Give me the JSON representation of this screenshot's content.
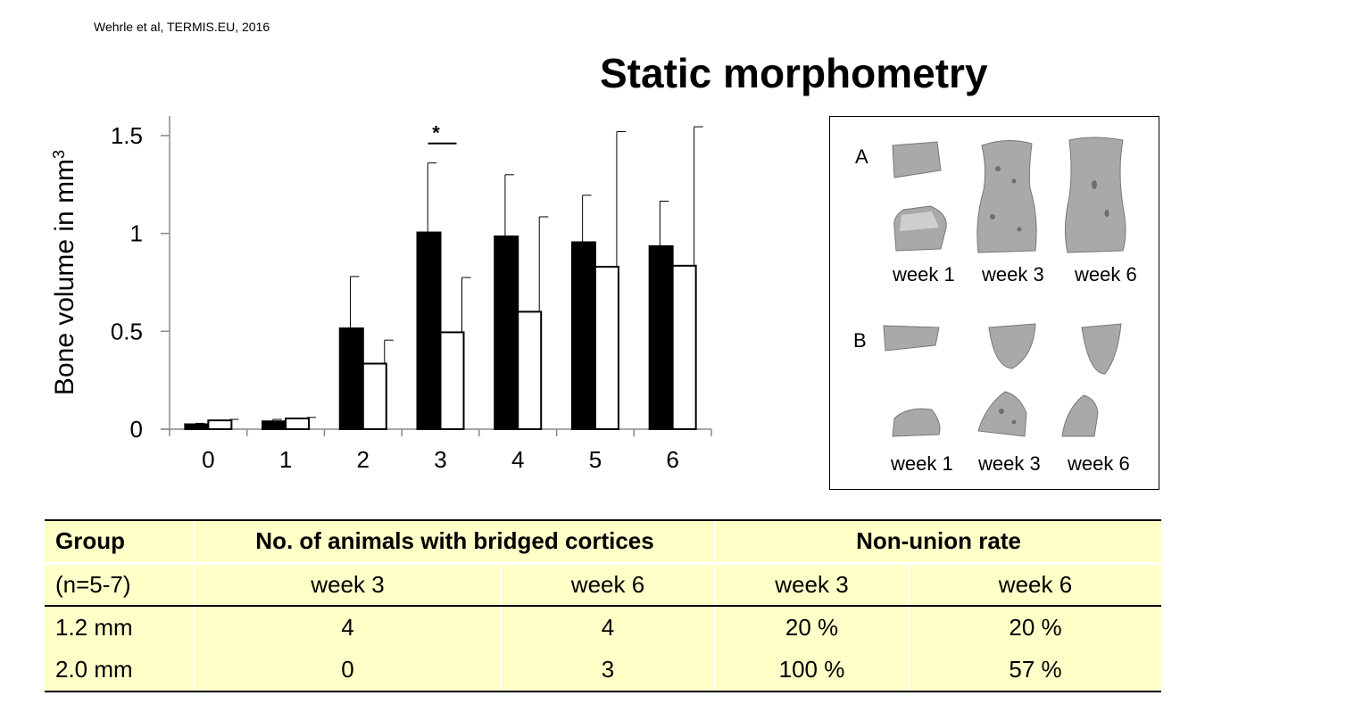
{
  "citation": "Wehrle et al, TERMIS.EU, 2016",
  "slide_title": "Static morphometry",
  "chart_data": {
    "type": "bar",
    "title": "",
    "xlabel": "",
    "ylabel": "Bone volume in mm",
    "ylabel_superscript": "3",
    "categories": [
      "0",
      "1",
      "2",
      "3",
      "4",
      "5",
      "6"
    ],
    "series": [
      {
        "color": "#000000",
        "values": [
          0.025,
          0.04,
          0.515,
          1.005,
          0.985,
          0.955,
          0.935
        ],
        "errors": [
          0.005,
          0.01,
          0.265,
          0.355,
          0.315,
          0.24,
          0.23
        ]
      },
      {
        "color": "#ffffff",
        "values": [
          0.045,
          0.055,
          0.335,
          0.495,
          0.6,
          0.83,
          0.835
        ],
        "errors": [
          0.005,
          0.005,
          0.12,
          0.28,
          0.485,
          0.69,
          0.71
        ]
      }
    ],
    "yticks": [
      "0",
      "0.5",
      "1",
      "1.5"
    ],
    "ylim": [
      0,
      1.6
    ],
    "grid": false,
    "annotations": [
      {
        "text": "*",
        "category": "3"
      }
    ]
  },
  "inset": {
    "panel_a": {
      "letter": "A",
      "weeks": [
        "week 1",
        "week 3",
        "week 6"
      ]
    },
    "panel_b": {
      "letter": "B",
      "weeks": [
        "week 1",
        "week 3",
        "week 6"
      ]
    },
    "bone_color": "#a9a9a9"
  },
  "table": {
    "headers": {
      "group": "Group",
      "bridged": "No. of animals with bridged cortices",
      "nonunion": "Non-union rate"
    },
    "subheaders": [
      "(n=5-7)",
      "week 3",
      "week 6",
      "week 3",
      "week 6"
    ],
    "rows": [
      [
        "1.2 mm",
        "4",
        "4",
        "20 %",
        "20 %"
      ],
      [
        "2.0 mm",
        "0",
        "3",
        "100 %",
        "57 %"
      ]
    ]
  }
}
